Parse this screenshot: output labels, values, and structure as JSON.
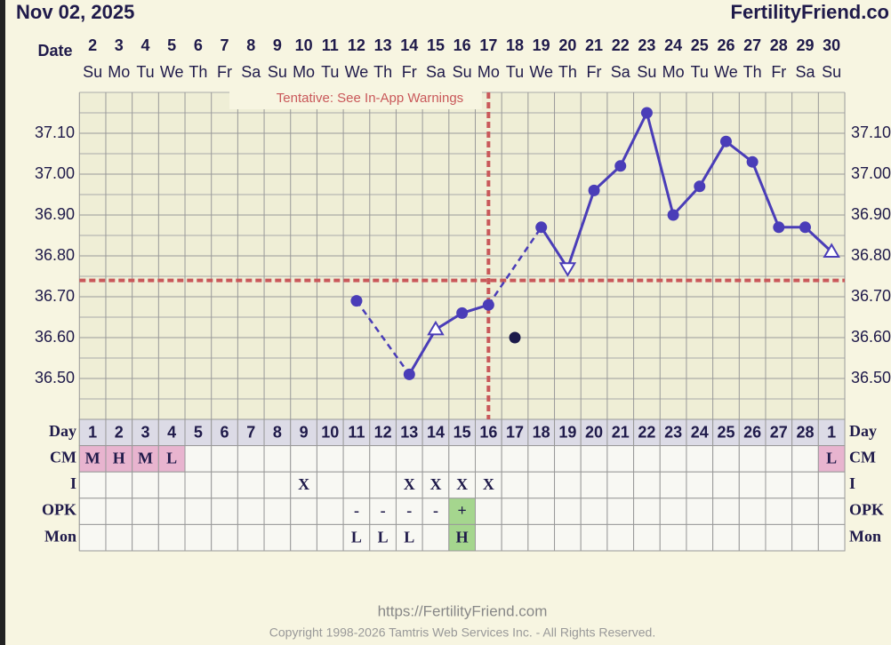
{
  "chart_data": {
    "type": "line",
    "title": "Nov 02, 2025",
    "brand": "FertilityFriend.co",
    "date_label": "Date",
    "categories": [
      2,
      3,
      4,
      5,
      6,
      7,
      8,
      9,
      10,
      11,
      12,
      13,
      14,
      15,
      16,
      17,
      18,
      19,
      20,
      21,
      22,
      23,
      24,
      25,
      26,
      27,
      28,
      29,
      30
    ],
    "weekdays": [
      "Su",
      "Mo",
      "Tu",
      "We",
      "Th",
      "Fr",
      "Sa",
      "Su",
      "Mo",
      "Tu",
      "We",
      "Th",
      "Fr",
      "Sa",
      "Su",
      "Mo",
      "Tu",
      "We",
      "Th",
      "Fr",
      "Sa",
      "Su",
      "Mo",
      "Tu",
      "We",
      "Th",
      "Fr",
      "Sa",
      "Su"
    ],
    "ylim": [
      36.4,
      37.2
    ],
    "yticks": [
      {
        "value": 36.5,
        "label": "36.50"
      },
      {
        "value": 36.6,
        "label": "36.60"
      },
      {
        "value": 36.7,
        "label": "36.70"
      },
      {
        "value": 36.8,
        "label": "36.80"
      },
      {
        "value": 36.9,
        "label": "36.90"
      },
      {
        "value": 37.0,
        "label": "37.00"
      },
      {
        "value": 37.1,
        "label": "37.10"
      }
    ],
    "minor_step": 0.05,
    "grid": true,
    "color": "#4a3db8",
    "values": [
      null,
      null,
      null,
      null,
      null,
      null,
      null,
      null,
      null,
      null,
      36.69,
      null,
      36.51,
      36.62,
      36.66,
      36.68,
      null,
      36.87,
      36.77,
      36.96,
      37.02,
      37.15,
      36.9,
      36.97,
      37.08,
      37.03,
      36.87,
      36.87,
      36.81
    ],
    "markers": [
      null,
      null,
      null,
      null,
      null,
      null,
      null,
      null,
      null,
      null,
      "circle",
      null,
      "circle",
      "triangle-up",
      "circle",
      "circle",
      null,
      "circle",
      "triangle-down",
      "circle",
      "circle",
      "circle",
      "circle",
      "circle",
      "circle",
      "circle",
      "circle",
      "circle",
      "triangle-up"
    ],
    "discarded_values": [
      null,
      null,
      null,
      null,
      null,
      null,
      null,
      null,
      null,
      null,
      null,
      null,
      null,
      null,
      null,
      null,
      36.6,
      null,
      null,
      null,
      null,
      null,
      null,
      null,
      null,
      null,
      null,
      null,
      null
    ],
    "discarded_color": "#1c1a4a",
    "coverline": 36.74,
    "ovulation_date": 17,
    "reference_color": "#c9585a",
    "annotation": "Tentative: See In-App Warnings"
  },
  "table": {
    "rows": [
      {
        "label": "Day",
        "cells": [
          1,
          2,
          3,
          4,
          5,
          6,
          7,
          8,
          9,
          10,
          11,
          12,
          13,
          14,
          15,
          16,
          17,
          18,
          19,
          20,
          21,
          22,
          23,
          24,
          25,
          26,
          27,
          28,
          1
        ],
        "fill": "#dcdbe6"
      },
      {
        "label": "CM",
        "cells": [
          "M",
          "H",
          "M",
          "L",
          null,
          null,
          null,
          null,
          null,
          null,
          null,
          null,
          null,
          null,
          null,
          null,
          null,
          null,
          null,
          null,
          null,
          null,
          null,
          null,
          null,
          null,
          null,
          null,
          "L"
        ],
        "highlight": [
          "M",
          "H",
          "L"
        ],
        "highlight_color": "#e8b4cf"
      },
      {
        "label": "I",
        "cells": [
          null,
          null,
          null,
          null,
          null,
          null,
          null,
          null,
          "X",
          null,
          null,
          null,
          "X",
          "X",
          "X",
          "X",
          null,
          null,
          null,
          null,
          null,
          null,
          null,
          null,
          null,
          null,
          null,
          null,
          null
        ]
      },
      {
        "label": "OPK",
        "cells": [
          null,
          null,
          null,
          null,
          null,
          null,
          null,
          null,
          null,
          null,
          "-",
          "-",
          "-",
          "-",
          "+",
          null,
          null,
          null,
          null,
          null,
          null,
          null,
          null,
          null,
          null,
          null,
          null,
          null,
          null
        ],
        "highlight": [
          "+"
        ],
        "highlight_color": "#a5d68e"
      },
      {
        "label": "Mon",
        "cells": [
          null,
          null,
          null,
          null,
          null,
          null,
          null,
          null,
          null,
          null,
          "L",
          "L",
          "L",
          null,
          "H",
          null,
          null,
          null,
          null,
          null,
          null,
          null,
          null,
          null,
          null,
          null,
          null,
          null,
          null
        ],
        "highlight": [
          "H"
        ],
        "highlight_color": "#a5d68e"
      }
    ]
  },
  "footer": {
    "url": "https://FertilityFriend.com",
    "copyright": "Copyright 1998-2026 Tamtris Web Services Inc. - All Rights Reserved."
  }
}
